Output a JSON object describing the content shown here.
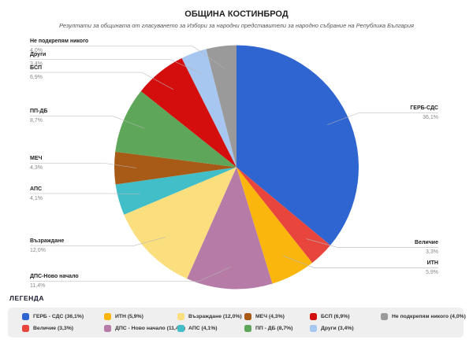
{
  "header": {
    "title": "ОБЩИНА КОСТИНБРОД",
    "subtitle": "Резултати за общината от гласуването за Избори за народни представители за народно събрание на Република България"
  },
  "legend": {
    "title": "ЛЕГЕНДА"
  },
  "chart_data": {
    "type": "pie",
    "title": "ОБЩИНА КОСТИНБРОД",
    "direction": "clockwise",
    "start_angle_deg": 0,
    "legend_position": "bottom",
    "slices": [
      {
        "label": "ГЕРБ-СДС",
        "value": 36.1,
        "pct_label": "36,1%",
        "legend_label": "ГЕРБ - СДС (36,1%)",
        "color": "#2F65D1"
      },
      {
        "label": "Величие",
        "value": 3.3,
        "pct_label": "3,3%",
        "legend_label": "Величие (3,3%)",
        "color": "#E8453C"
      },
      {
        "label": "ИТН",
        "value": 5.9,
        "pct_label": "5,9%",
        "legend_label": "ИТН (5,9%)",
        "color": "#FBB60D"
      },
      {
        "label": "ДПС-Ново начало",
        "value": 11.4,
        "pct_label": "11,4%",
        "legend_label": "ДПС - Ново начало (11,4%)",
        "color": "#B77BA8"
      },
      {
        "label": "Възраждане",
        "value": 12.0,
        "pct_label": "12,0%",
        "legend_label": "Възраждане (12,0%)",
        "color": "#FBDF7E"
      },
      {
        "label": "АПС",
        "value": 4.1,
        "pct_label": "4,1%",
        "legend_label": "АПС (4,1%)",
        "color": "#41BEC8"
      },
      {
        "label": "МЕЧ",
        "value": 4.3,
        "pct_label": "4,3%",
        "legend_label": "МЕЧ (4,3%)",
        "color": "#A85B17"
      },
      {
        "label": "ПП-ДБ",
        "value": 8.7,
        "pct_label": "8,7%",
        "legend_label": "ПП - ДБ (8,7%)",
        "color": "#5EA75A"
      },
      {
        "label": "БСП",
        "value": 6.9,
        "pct_label": "6,9%",
        "legend_label": "БСП (6,9%)",
        "color": "#D40D0D"
      },
      {
        "label": "Други",
        "value": 3.4,
        "pct_label": "3,4%",
        "legend_label": "Други (3,4%)",
        "color": "#A7C7F0"
      },
      {
        "label": "Не подкрепям никого",
        "value": 4.0,
        "pct_label": "4,0%",
        "legend_label": "Не подкрепям никого (4,0%)",
        "color": "#9A9A9A"
      }
    ]
  }
}
